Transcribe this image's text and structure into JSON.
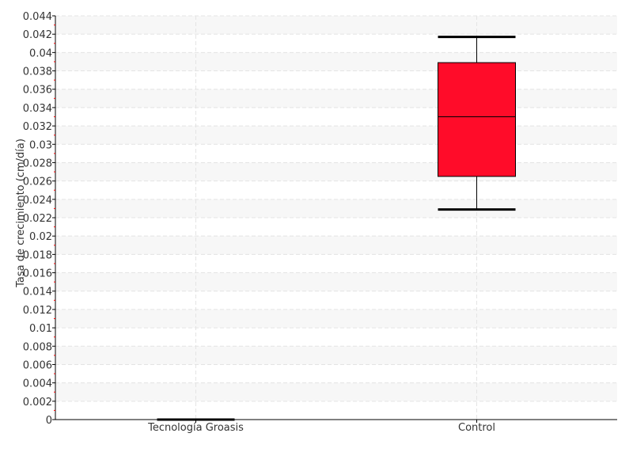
{
  "chart_data": {
    "type": "boxplot",
    "title": "",
    "xlabel": "",
    "ylabel": "Tasa de crecimiento (cm/día)",
    "ylim": [
      0,
      0.044
    ],
    "ytick_step": 0.002,
    "yticks": [
      "0",
      "0.002",
      "0.004",
      "0.006",
      "0.008",
      "0.01",
      "0.012",
      "0.014",
      "0.016",
      "0.018",
      "0.02",
      "0.022",
      "0.024",
      "0.026",
      "0.028",
      "0.03",
      "0.032",
      "0.034",
      "0.036",
      "0.038",
      "0.04",
      "0.042",
      "0.044"
    ],
    "categories": [
      "Tecnología Groasis",
      "Control"
    ],
    "boxes": [
      {
        "category": "Tecnología Groasis",
        "min": 0,
        "q1": 0,
        "median": 0,
        "q3": 0,
        "max": 0
      },
      {
        "category": "Control",
        "min": 0.0229,
        "q1": 0.0265,
        "median": 0.033,
        "q3": 0.0389,
        "max": 0.0417
      }
    ],
    "box_color": "#ff0c29",
    "grid": true,
    "band_color": "#f7f7f7",
    "minor_tick_color": "#ff0000"
  }
}
